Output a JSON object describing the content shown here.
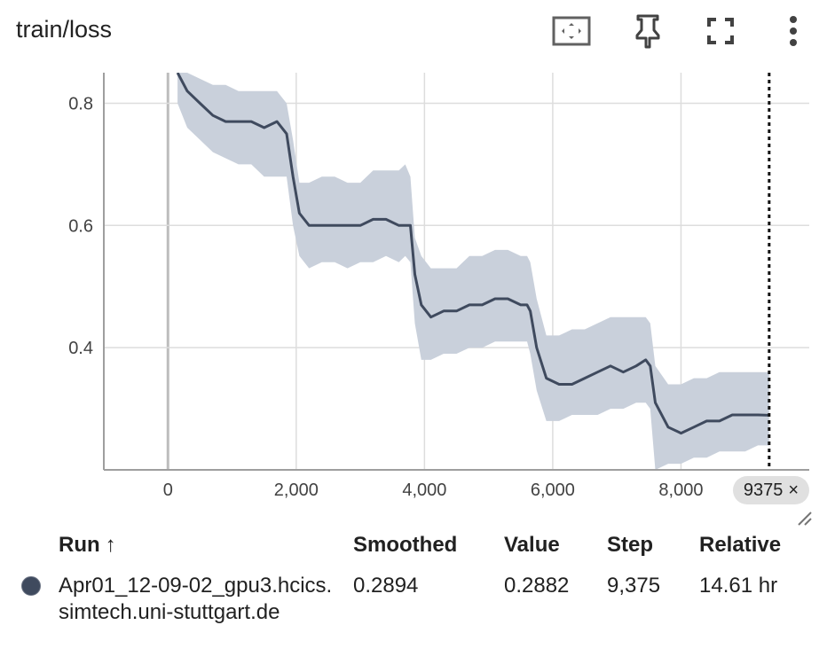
{
  "header": {
    "title": "train/loss"
  },
  "toolbar": {
    "icons": [
      "fit-to-data-icon",
      "pin-icon",
      "fullscreen-icon",
      "more-vert-icon"
    ]
  },
  "colors": {
    "smoothed_line": "#3f4a5e",
    "raw_band": "#c9d0db",
    "grid": "#dddddd",
    "axis": "#9e9e9e"
  },
  "chart_data": {
    "type": "line",
    "title": "train/loss",
    "xlabel": "",
    "ylabel": "",
    "xlim": [
      -1000,
      10000
    ],
    "ylim": [
      0.2,
      0.85
    ],
    "x_ticks": [
      0,
      2000,
      4000,
      6000,
      8000
    ],
    "x_tick_labels": [
      "0",
      "2,000",
      "4,000",
      "6,000",
      "8,000"
    ],
    "y_ticks": [
      0.4,
      0.6,
      0.8
    ],
    "y_tick_labels": [
      "0.4",
      "0.6",
      "0.8"
    ],
    "grid": true,
    "series": [
      {
        "name": "Apr01_12-09-02_gpu3.hcics.simtech.uni-stuttgart.de",
        "x": [
          150,
          300,
          500,
          700,
          900,
          1100,
          1300,
          1500,
          1700,
          1850,
          1950,
          2050,
          2200,
          2400,
          2600,
          2800,
          3000,
          3200,
          3400,
          3600,
          3700,
          3780,
          3850,
          3950,
          4100,
          4300,
          4500,
          4700,
          4900,
          5100,
          5300,
          5500,
          5600,
          5650,
          5750,
          5900,
          6100,
          6300,
          6500,
          6700,
          6900,
          7100,
          7300,
          7450,
          7520,
          7600,
          7800,
          8000,
          8200,
          8400,
          8600,
          8800,
          9000,
          9200,
          9375
        ],
        "smoothed": [
          0.85,
          0.82,
          0.8,
          0.78,
          0.77,
          0.77,
          0.77,
          0.76,
          0.77,
          0.75,
          0.68,
          0.62,
          0.6,
          0.6,
          0.6,
          0.6,
          0.6,
          0.61,
          0.61,
          0.6,
          0.6,
          0.6,
          0.52,
          0.47,
          0.45,
          0.46,
          0.46,
          0.47,
          0.47,
          0.48,
          0.48,
          0.47,
          0.47,
          0.46,
          0.4,
          0.35,
          0.34,
          0.34,
          0.35,
          0.36,
          0.37,
          0.36,
          0.37,
          0.38,
          0.37,
          0.31,
          0.27,
          0.26,
          0.27,
          0.28,
          0.28,
          0.29,
          0.29,
          0.29,
          0.2894
        ],
        "raw_upper": [
          0.85,
          0.85,
          0.84,
          0.83,
          0.83,
          0.82,
          0.82,
          0.82,
          0.82,
          0.8,
          0.74,
          0.67,
          0.67,
          0.68,
          0.68,
          0.67,
          0.67,
          0.69,
          0.69,
          0.69,
          0.7,
          0.68,
          0.58,
          0.55,
          0.53,
          0.53,
          0.53,
          0.55,
          0.55,
          0.56,
          0.56,
          0.55,
          0.55,
          0.54,
          0.48,
          0.42,
          0.42,
          0.43,
          0.43,
          0.44,
          0.45,
          0.45,
          0.45,
          0.45,
          0.44,
          0.37,
          0.34,
          0.34,
          0.35,
          0.35,
          0.36,
          0.36,
          0.36,
          0.36,
          0.36
        ],
        "raw_lower": [
          0.8,
          0.76,
          0.74,
          0.72,
          0.71,
          0.7,
          0.7,
          0.68,
          0.68,
          0.68,
          0.6,
          0.55,
          0.53,
          0.54,
          0.54,
          0.53,
          0.54,
          0.54,
          0.55,
          0.54,
          0.55,
          0.54,
          0.44,
          0.38,
          0.38,
          0.39,
          0.39,
          0.4,
          0.4,
          0.41,
          0.41,
          0.41,
          0.41,
          0.39,
          0.33,
          0.28,
          0.28,
          0.29,
          0.29,
          0.29,
          0.3,
          0.3,
          0.31,
          0.31,
          0.3,
          0.2,
          0.21,
          0.21,
          0.22,
          0.22,
          0.23,
          0.23,
          0.23,
          0.24,
          0.24
        ]
      }
    ],
    "cursor_step": 9375
  },
  "step_chip": {
    "label": "9375",
    "close": "×"
  },
  "table": {
    "headers": {
      "run": "Run",
      "sort_arrow": "↑",
      "smoothed": "Smoothed",
      "value": "Value",
      "step": "Step",
      "relative": "Relative"
    },
    "rows": [
      {
        "run": "Apr01_12-09-02_gpu3.hcics.simtech.uni-stuttgart.de",
        "smoothed": "0.2894",
        "value": "0.2882",
        "step": "9,375",
        "relative": "14.61 hr"
      }
    ]
  }
}
